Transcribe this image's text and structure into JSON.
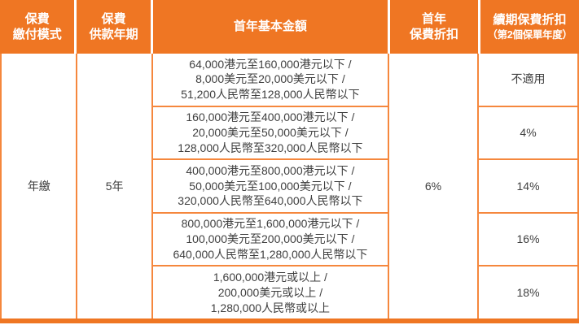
{
  "theme": {
    "header_bg": "#EF7623",
    "border_color": "#F5873D",
    "header_text_color": "#FFFFFF",
    "body_text_color": "#3F3F3F",
    "bottom_bar_color": "#EF7623"
  },
  "table": {
    "headers": {
      "payment_mode": {
        "line1": "保費",
        "line2": "繳付模式"
      },
      "payment_term": {
        "line1": "保費",
        "line2": "供款年期"
      },
      "first_year_amount": {
        "line1": "首年基本金額"
      },
      "first_year_discount": {
        "line1": "首年",
        "line2": "保費折扣"
      },
      "renewal_discount": {
        "line1": "續期保費折扣",
        "line2": "（第2個保單年度）"
      }
    },
    "merged_cells": {
      "payment_mode": "年繳",
      "payment_term": "5年",
      "first_year_discount": "6%"
    },
    "rows": [
      {
        "amount_lines": [
          "64,000港元至160,000港元以下 /",
          "8,000美元至20,000美元以下 /",
          "51,200人民幣至128,000人民幣以下"
        ],
        "renewal_discount": "不適用"
      },
      {
        "amount_lines": [
          "160,000港元至400,000港元以下 /",
          "20,000美元至50,000美元以下 /",
          "128,000人民幣至320,000人民幣以下"
        ],
        "renewal_discount": "4%"
      },
      {
        "amount_lines": [
          "400,000港元至800,000港元以下 /",
          "50,000美元至100,000美元以下 /",
          "320,000人民幣至640,000人民幣以下"
        ],
        "renewal_discount": "14%"
      },
      {
        "amount_lines": [
          "800,000港元至1,600,000港元以下 /",
          "100,000美元至200,000美元以下 /",
          "640,000人民幣至1,280,000人民幣以下"
        ],
        "renewal_discount": "16%"
      },
      {
        "amount_lines": [
          "1,600,000港元或以上 /",
          "200,000美元或以上 /",
          "1,280,000人民幣或以上"
        ],
        "renewal_discount": "18%"
      }
    ]
  }
}
